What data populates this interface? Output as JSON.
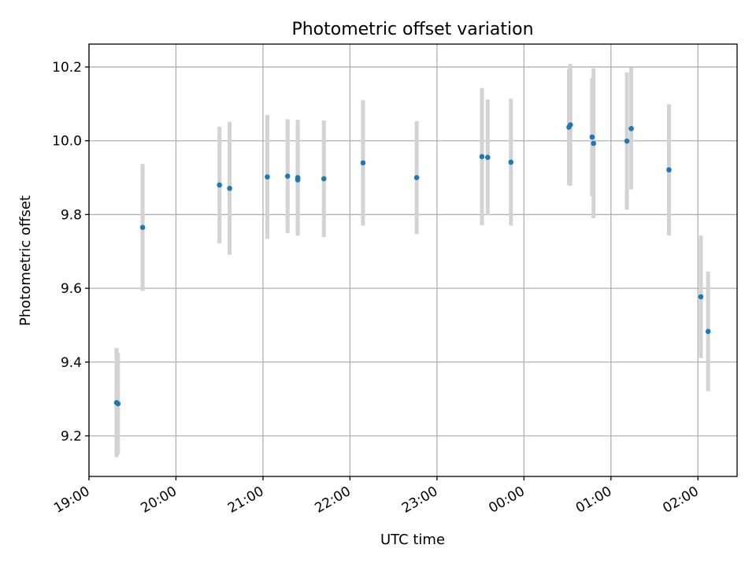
{
  "chart_data": {
    "type": "scatter",
    "title": "Photometric offset variation",
    "xlabel": "UTC time",
    "ylabel": "Photometric offset",
    "x_axis_kind": "time",
    "x_range_hours": [
      19.0,
      26.45
    ],
    "ylim": [
      9.09,
      10.262
    ],
    "y_ticks": [
      9.2,
      9.4,
      9.6,
      9.8,
      10.0,
      10.2
    ],
    "y_tick_labels": [
      "9.2",
      "9.4",
      "9.6",
      "9.8",
      "10.0",
      "10.2"
    ],
    "x_ticks_hours": [
      19,
      20,
      21,
      22,
      23,
      24,
      25,
      26
    ],
    "x_tick_labels": [
      "19:00",
      "20:00",
      "21:00",
      "22:00",
      "23:00",
      "00:00",
      "01:00",
      "02:00"
    ],
    "grid": true,
    "marker_color": "#1f77b4",
    "errorbar_color": "#d3d3d3",
    "points": [
      {
        "t": "19:19",
        "y": 9.29,
        "err": 0.148
      },
      {
        "t": "19:20",
        "y": 9.287,
        "err": 0.138
      },
      {
        "t": "19:37",
        "y": 9.765,
        "err": 0.172
      },
      {
        "t": "20:30",
        "y": 9.88,
        "err": 0.158
      },
      {
        "t": "20:37",
        "y": 9.871,
        "err": 0.18
      },
      {
        "t": "21:03",
        "y": 9.902,
        "err": 0.168
      },
      {
        "t": "21:17",
        "y": 9.904,
        "err": 0.154
      },
      {
        "t": "21:24",
        "y": 9.9,
        "err": 0.157
      },
      {
        "t": "21:24",
        "y": 9.894,
        "err": 0.149
      },
      {
        "t": "21:42",
        "y": 9.897,
        "err": 0.158
      },
      {
        "t": "22:09",
        "y": 9.94,
        "err": 0.17
      },
      {
        "t": "22:46",
        "y": 9.9,
        "err": 0.153
      },
      {
        "t": "23:31",
        "y": 9.957,
        "err": 0.186
      },
      {
        "t": "23:35",
        "y": 9.955,
        "err": 0.157
      },
      {
        "t": "23:51",
        "y": 9.942,
        "err": 0.172
      },
      {
        "t": "00:31",
        "y": 10.037,
        "err": 0.157
      },
      {
        "t": "00:32",
        "y": 10.043,
        "err": 0.165
      },
      {
        "t": "00:47",
        "y": 10.01,
        "err": 0.16
      },
      {
        "t": "00:48",
        "y": 9.993,
        "err": 0.203
      },
      {
        "t": "01:11",
        "y": 9.999,
        "err": 0.186
      },
      {
        "t": "01:14",
        "y": 10.033,
        "err": 0.165
      },
      {
        "t": "01:40",
        "y": 9.921,
        "err": 0.178
      },
      {
        "t": "02:02",
        "y": 9.577,
        "err": 0.166
      },
      {
        "t": "02:07",
        "y": 9.483,
        "err": 0.162
      }
    ]
  }
}
